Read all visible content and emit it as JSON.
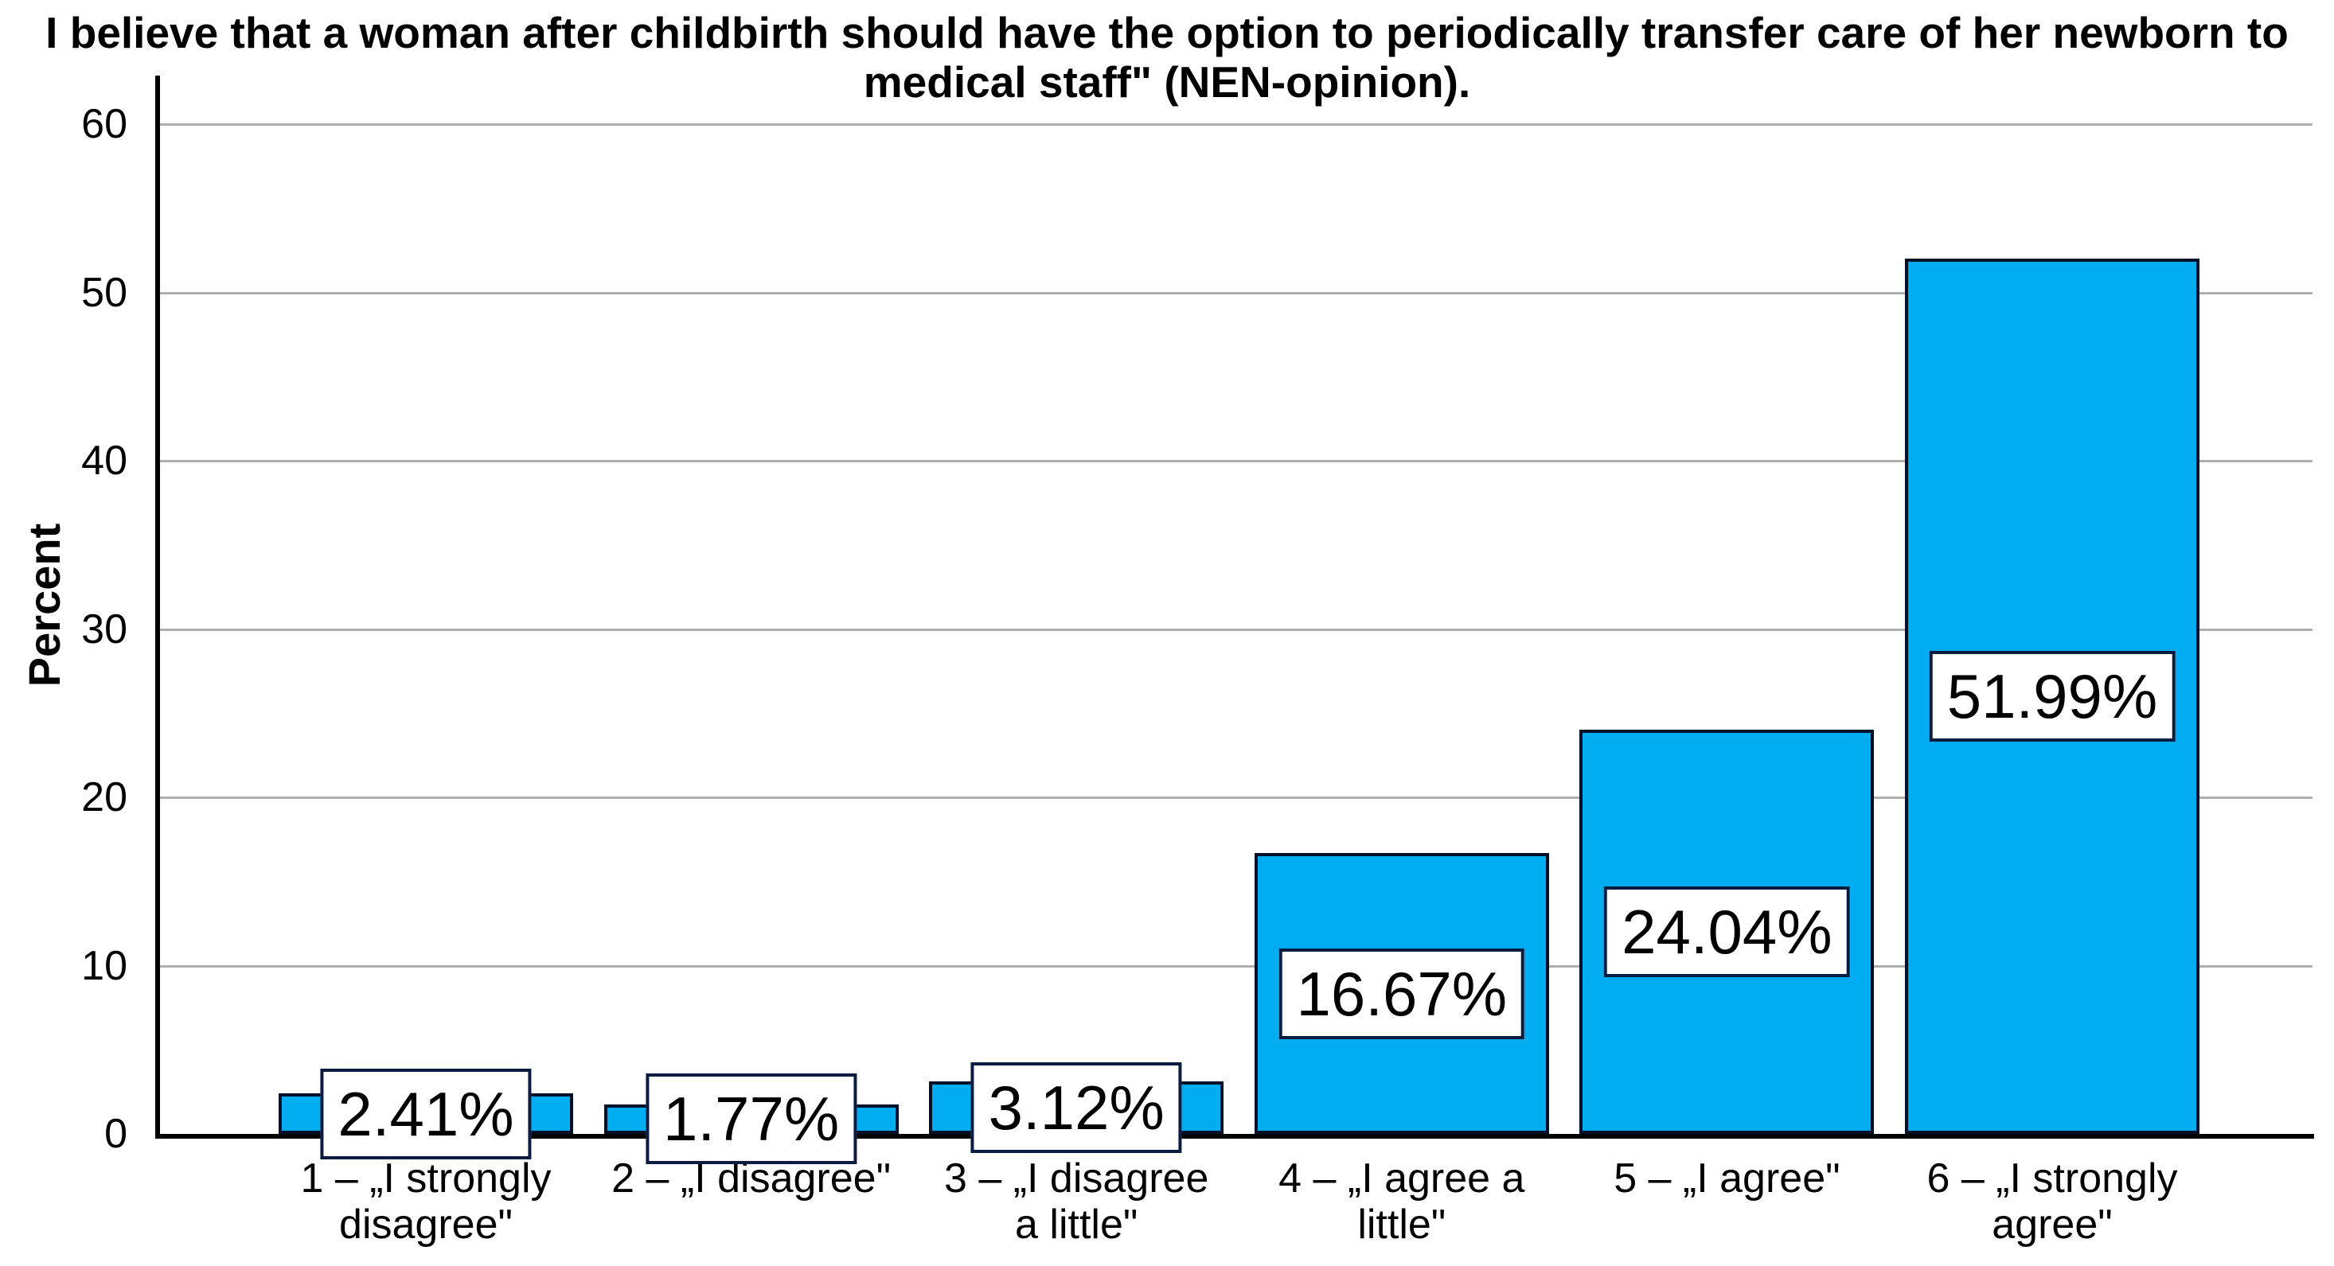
{
  "chart_data": {
    "type": "bar",
    "title": "I believe that a woman after childbirth should have the option to periodically transfer care of her newborn to medical staff\" (NEN-opinion).",
    "title_lines": [
      "I believe that a woman after childbirth should have the option to periodically transfer care of her newborn to",
      "medical staff\" (NEN-opinion)."
    ],
    "xlabel": "",
    "ylabel": "Percent",
    "ylim": [
      0,
      62.9
    ],
    "yticks": [
      0,
      10,
      20,
      30,
      40,
      50,
      60
    ],
    "grid": "horizontal",
    "legend_position": "none",
    "categories": [
      "1 – „I strongly disagree\"",
      "2 – „I disagree\"",
      "3 – „I disagree a little\"",
      "4 – „I agree a little\"",
      "5 – „I agree\"",
      "6 – „I strongly agree\""
    ],
    "category_lines": [
      [
        "1 – „I strongly",
        "disagree\""
      ],
      [
        "2 – „I disagree\""
      ],
      [
        "3 – „I disagree",
        "a little\""
      ],
      [
        "4 – „I agree a",
        "little\""
      ],
      [
        "5 – „I agree\""
      ],
      [
        "6 – „I strongly",
        "agree\""
      ]
    ],
    "values": [
      2.41,
      1.77,
      3.12,
      16.67,
      24.04,
      51.99
    ],
    "value_labels": [
      "2.41%",
      "1.77%",
      "3.12%",
      "16.67%",
      "24.04%",
      "51.99%"
    ],
    "colors": {
      "bar_fill": "#00ADF0",
      "bar_border": "#02102A",
      "gridline": "#AFAFAF",
      "axis": "#000000",
      "value_box_bg": "#FFFFFF",
      "value_box_border": "#0A1C40",
      "text": "#000000",
      "background": "#FFFFFF"
    }
  }
}
